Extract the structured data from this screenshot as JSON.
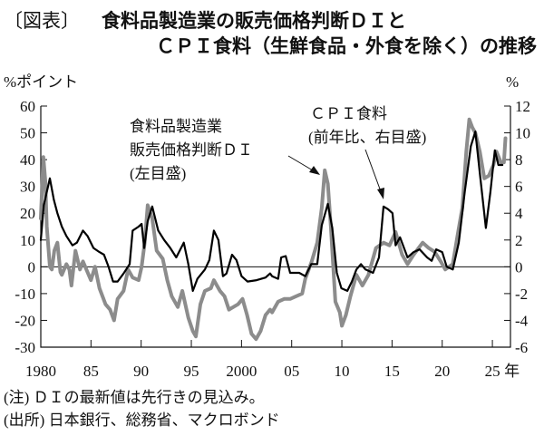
{
  "header": {
    "tag": "〔図表〕",
    "title_line1": "食料品製造業の販売価格判断ＤＩと",
    "title_line2": "ＣＰＩ食料（生鮮食品・外食を除く）の推移"
  },
  "footer": {
    "note": "(注) ＤＩの最新値は先行きの見込み。",
    "source": "(出所) 日本銀行、総務省、マクロボンド"
  },
  "chart_data": {
    "type": "line",
    "left_axis_unit": "%ポイント",
    "right_axis_unit": "%",
    "x_unit": "年",
    "ylim_left": [
      -30,
      60
    ],
    "ylim_right": [
      -6,
      12
    ],
    "xlim": [
      1980,
      2026.8
    ],
    "yticks_left": [
      "60",
      "50",
      "40",
      "30",
      "20",
      "10",
      "0",
      "-10",
      "-20",
      "-30"
    ],
    "yticks_right": [
      "12",
      "10",
      "8",
      "6",
      "4",
      "2",
      "0",
      "-2",
      "-4",
      "-6"
    ],
    "xticks": [
      {
        "year": 1980,
        "label": "1980"
      },
      {
        "year": 1985,
        "label": "85"
      },
      {
        "year": 1990,
        "label": "90"
      },
      {
        "year": 1995,
        "label": "95"
      },
      {
        "year": 2000,
        "label": "2000"
      },
      {
        "year": 2005,
        "label": "05"
      },
      {
        "year": 2010,
        "label": "10"
      },
      {
        "year": 2015,
        "label": "15"
      },
      {
        "year": 2020,
        "label": "20"
      },
      {
        "year": 2025,
        "label": "25"
      }
    ],
    "grid": false,
    "zero_line": true,
    "series": [
      {
        "name": "食料品製造業販売価格判断ＤＩ",
        "label_lines": [
          "食料品製造業",
          "販売価格判断ＤＩ",
          "(左目盛)"
        ],
        "axis": "left",
        "color": "#8c8c8c",
        "points": [
          [
            1980.0,
            18
          ],
          [
            1980.25,
            41
          ],
          [
            1980.45,
            32
          ],
          [
            1980.6,
            15
          ],
          [
            1980.9,
            0
          ],
          [
            1981.1,
            -1
          ],
          [
            1981.35,
            6
          ],
          [
            1981.65,
            9
          ],
          [
            1981.95,
            -2
          ],
          [
            1982.1,
            -3
          ],
          [
            1982.55,
            1
          ],
          [
            1982.85,
            -1
          ],
          [
            1983.05,
            -7
          ],
          [
            1983.45,
            6
          ],
          [
            1983.9,
            -1
          ],
          [
            1984.2,
            2
          ],
          [
            1984.65,
            -2
          ],
          [
            1985.0,
            -5
          ],
          [
            1985.4,
            0
          ],
          [
            1985.85,
            -8
          ],
          [
            1986.45,
            -14
          ],
          [
            1986.9,
            -16
          ],
          [
            1987.3,
            -20
          ],
          [
            1987.65,
            -12
          ],
          [
            1988.25,
            -9
          ],
          [
            1988.7,
            -1
          ],
          [
            1989.15,
            -4
          ],
          [
            1989.75,
            -5
          ],
          [
            1990.05,
            0
          ],
          [
            1990.35,
            9
          ],
          [
            1990.65,
            23
          ],
          [
            1991.1,
            18
          ],
          [
            1991.55,
            6
          ],
          [
            1992.15,
            3
          ],
          [
            1992.6,
            -5
          ],
          [
            1993.05,
            -11
          ],
          [
            1993.65,
            -15
          ],
          [
            1994.1,
            -9
          ],
          [
            1994.4,
            -14
          ],
          [
            1994.7,
            -19
          ],
          [
            1995.15,
            -24
          ],
          [
            1995.45,
            -26
          ],
          [
            1995.9,
            -14
          ],
          [
            1996.35,
            -9
          ],
          [
            1996.95,
            -8
          ],
          [
            1997.25,
            -5
          ],
          [
            1997.85,
            -9
          ],
          [
            1998.3,
            -11
          ],
          [
            1998.75,
            -16
          ],
          [
            1999.65,
            -14
          ],
          [
            2000.1,
            -12
          ],
          [
            2000.55,
            -18
          ],
          [
            2001.0,
            -25
          ],
          [
            2001.45,
            -27
          ],
          [
            2001.9,
            -24
          ],
          [
            2002.4,
            -18
          ],
          [
            2002.85,
            -16
          ],
          [
            2003.05,
            -17
          ],
          [
            2003.65,
            -13
          ],
          [
            2004.25,
            -12
          ],
          [
            2004.85,
            -12
          ],
          [
            2005.45,
            -11
          ],
          [
            2006.05,
            -10
          ],
          [
            2006.35,
            -4.5
          ],
          [
            2007.0,
            2
          ],
          [
            2007.55,
            9
          ],
          [
            2008.0,
            22
          ],
          [
            2008.3,
            36
          ],
          [
            2008.6,
            31
          ],
          [
            2008.9,
            15
          ],
          [
            2009.35,
            -13
          ],
          [
            2009.8,
            -17
          ],
          [
            2010.0,
            -22
          ],
          [
            2010.4,
            -18
          ],
          [
            2010.85,
            -11
          ],
          [
            2011.45,
            -3
          ],
          [
            2012.05,
            -7
          ],
          [
            2012.65,
            -3
          ],
          [
            2013.4,
            7
          ],
          [
            2014.15,
            9
          ],
          [
            2014.75,
            8
          ],
          [
            2015.35,
            13
          ],
          [
            2016.0,
            4.5
          ],
          [
            2016.55,
            1
          ],
          [
            2017.15,
            4.5
          ],
          [
            2018.05,
            9
          ],
          [
            2018.65,
            7
          ],
          [
            2019.25,
            5.6
          ],
          [
            2019.85,
            2
          ],
          [
            2020.3,
            -1
          ],
          [
            2021.05,
            1
          ],
          [
            2021.5,
            11
          ],
          [
            2022.0,
            22
          ],
          [
            2022.4,
            43
          ],
          [
            2022.7,
            55
          ],
          [
            2023.0,
            52
          ],
          [
            2023.3,
            50
          ],
          [
            2023.75,
            43
          ],
          [
            2024.2,
            33
          ],
          [
            2024.65,
            34
          ],
          [
            2025.1,
            38
          ],
          [
            2025.4,
            43
          ],
          [
            2025.85,
            39
          ],
          [
            2026.15,
            39
          ],
          [
            2026.3,
            48
          ]
        ]
      },
      {
        "name": "ＣＰＩ食料",
        "label_lines": [
          "ＣＰＩ食料",
          "(前年比、右目盛)"
        ],
        "axis": "right",
        "color": "#000000",
        "points": [
          [
            1980.0,
            2.0
          ],
          [
            1980.3,
            4.6
          ],
          [
            1980.9,
            6.6
          ],
          [
            1981.3,
            5.0
          ],
          [
            1981.65,
            4.0
          ],
          [
            1982.1,
            3.0
          ],
          [
            1982.55,
            2.3
          ],
          [
            1983.15,
            1.6
          ],
          [
            1983.6,
            1.8
          ],
          [
            1984.2,
            2.7
          ],
          [
            1984.65,
            2.3
          ],
          [
            1985.25,
            1.4
          ],
          [
            1985.85,
            1.1
          ],
          [
            1986.3,
            0.9
          ],
          [
            1986.75,
            0.0
          ],
          [
            1987.2,
            -1.1
          ],
          [
            1987.65,
            -1.1
          ],
          [
            1988.25,
            -0.5
          ],
          [
            1988.85,
            0.2
          ],
          [
            1989.15,
            2.7
          ],
          [
            1989.75,
            3.0
          ],
          [
            1990.05,
            3.2
          ],
          [
            1990.3,
            1.4
          ],
          [
            1990.65,
            3.4
          ],
          [
            1991.1,
            4.5
          ],
          [
            1991.7,
            2.7
          ],
          [
            1992.3,
            2.0
          ],
          [
            1992.9,
            1.4
          ],
          [
            1993.5,
            0.7
          ],
          [
            1994.25,
            1.8
          ],
          [
            1994.7,
            0.2
          ],
          [
            1995.15,
            -1.8
          ],
          [
            1995.6,
            -0.9
          ],
          [
            1996.35,
            -0.2
          ],
          [
            1996.8,
            0.5
          ],
          [
            1997.25,
            2.7
          ],
          [
            1997.7,
            2.0
          ],
          [
            1998.15,
            -0.7
          ],
          [
            1998.5,
            -0.5
          ],
          [
            1999.05,
            0.9
          ],
          [
            1999.5,
            0.5
          ],
          [
            2000.0,
            -0.7
          ],
          [
            2000.6,
            -1.1
          ],
          [
            2001.5,
            -1.0
          ],
          [
            2002.4,
            -0.8
          ],
          [
            2002.85,
            -0.5
          ],
          [
            2003.05,
            -0.7
          ],
          [
            2003.65,
            -0.9
          ],
          [
            2003.95,
            0.7
          ],
          [
            2004.4,
            0.8
          ],
          [
            2004.85,
            -0.45
          ],
          [
            2005.75,
            -0.45
          ],
          [
            2006.35,
            -0.7
          ],
          [
            2006.95,
            0.2
          ],
          [
            2007.55,
            0.2
          ],
          [
            2008.0,
            3.1
          ],
          [
            2008.6,
            4.7
          ],
          [
            2009.05,
            2.9
          ],
          [
            2009.5,
            -0.45
          ],
          [
            2009.95,
            -1.6
          ],
          [
            2010.55,
            -1.8
          ],
          [
            2011.0,
            -1.1
          ],
          [
            2011.45,
            -0.2
          ],
          [
            2011.9,
            0.2
          ],
          [
            2012.35,
            -0.2
          ],
          [
            2013.1,
            -0.45
          ],
          [
            2013.7,
            0.7
          ],
          [
            2014.15,
            4.5
          ],
          [
            2014.6,
            4.3
          ],
          [
            2015.05,
            4.0
          ],
          [
            2015.35,
            1.6
          ],
          [
            2015.8,
            2.2
          ],
          [
            2016.55,
            0.7
          ],
          [
            2017.15,
            1.1
          ],
          [
            2017.75,
            1.3
          ],
          [
            2018.5,
            0.7
          ],
          [
            2018.95,
            0.45
          ],
          [
            2019.4,
            1.3
          ],
          [
            2020.0,
            1.1
          ],
          [
            2020.45,
            0.0
          ],
          [
            2021.05,
            -0.2
          ],
          [
            2021.65,
            1.8
          ],
          [
            2022.25,
            5.6
          ],
          [
            2022.85,
            9.0
          ],
          [
            2023.3,
            10.1
          ],
          [
            2023.75,
            7.0
          ],
          [
            2024.35,
            2.9
          ],
          [
            2024.8,
            5.6
          ],
          [
            2025.25,
            8.7
          ],
          [
            2025.6,
            7.6
          ],
          [
            2026.0,
            7.6
          ]
        ]
      }
    ]
  }
}
